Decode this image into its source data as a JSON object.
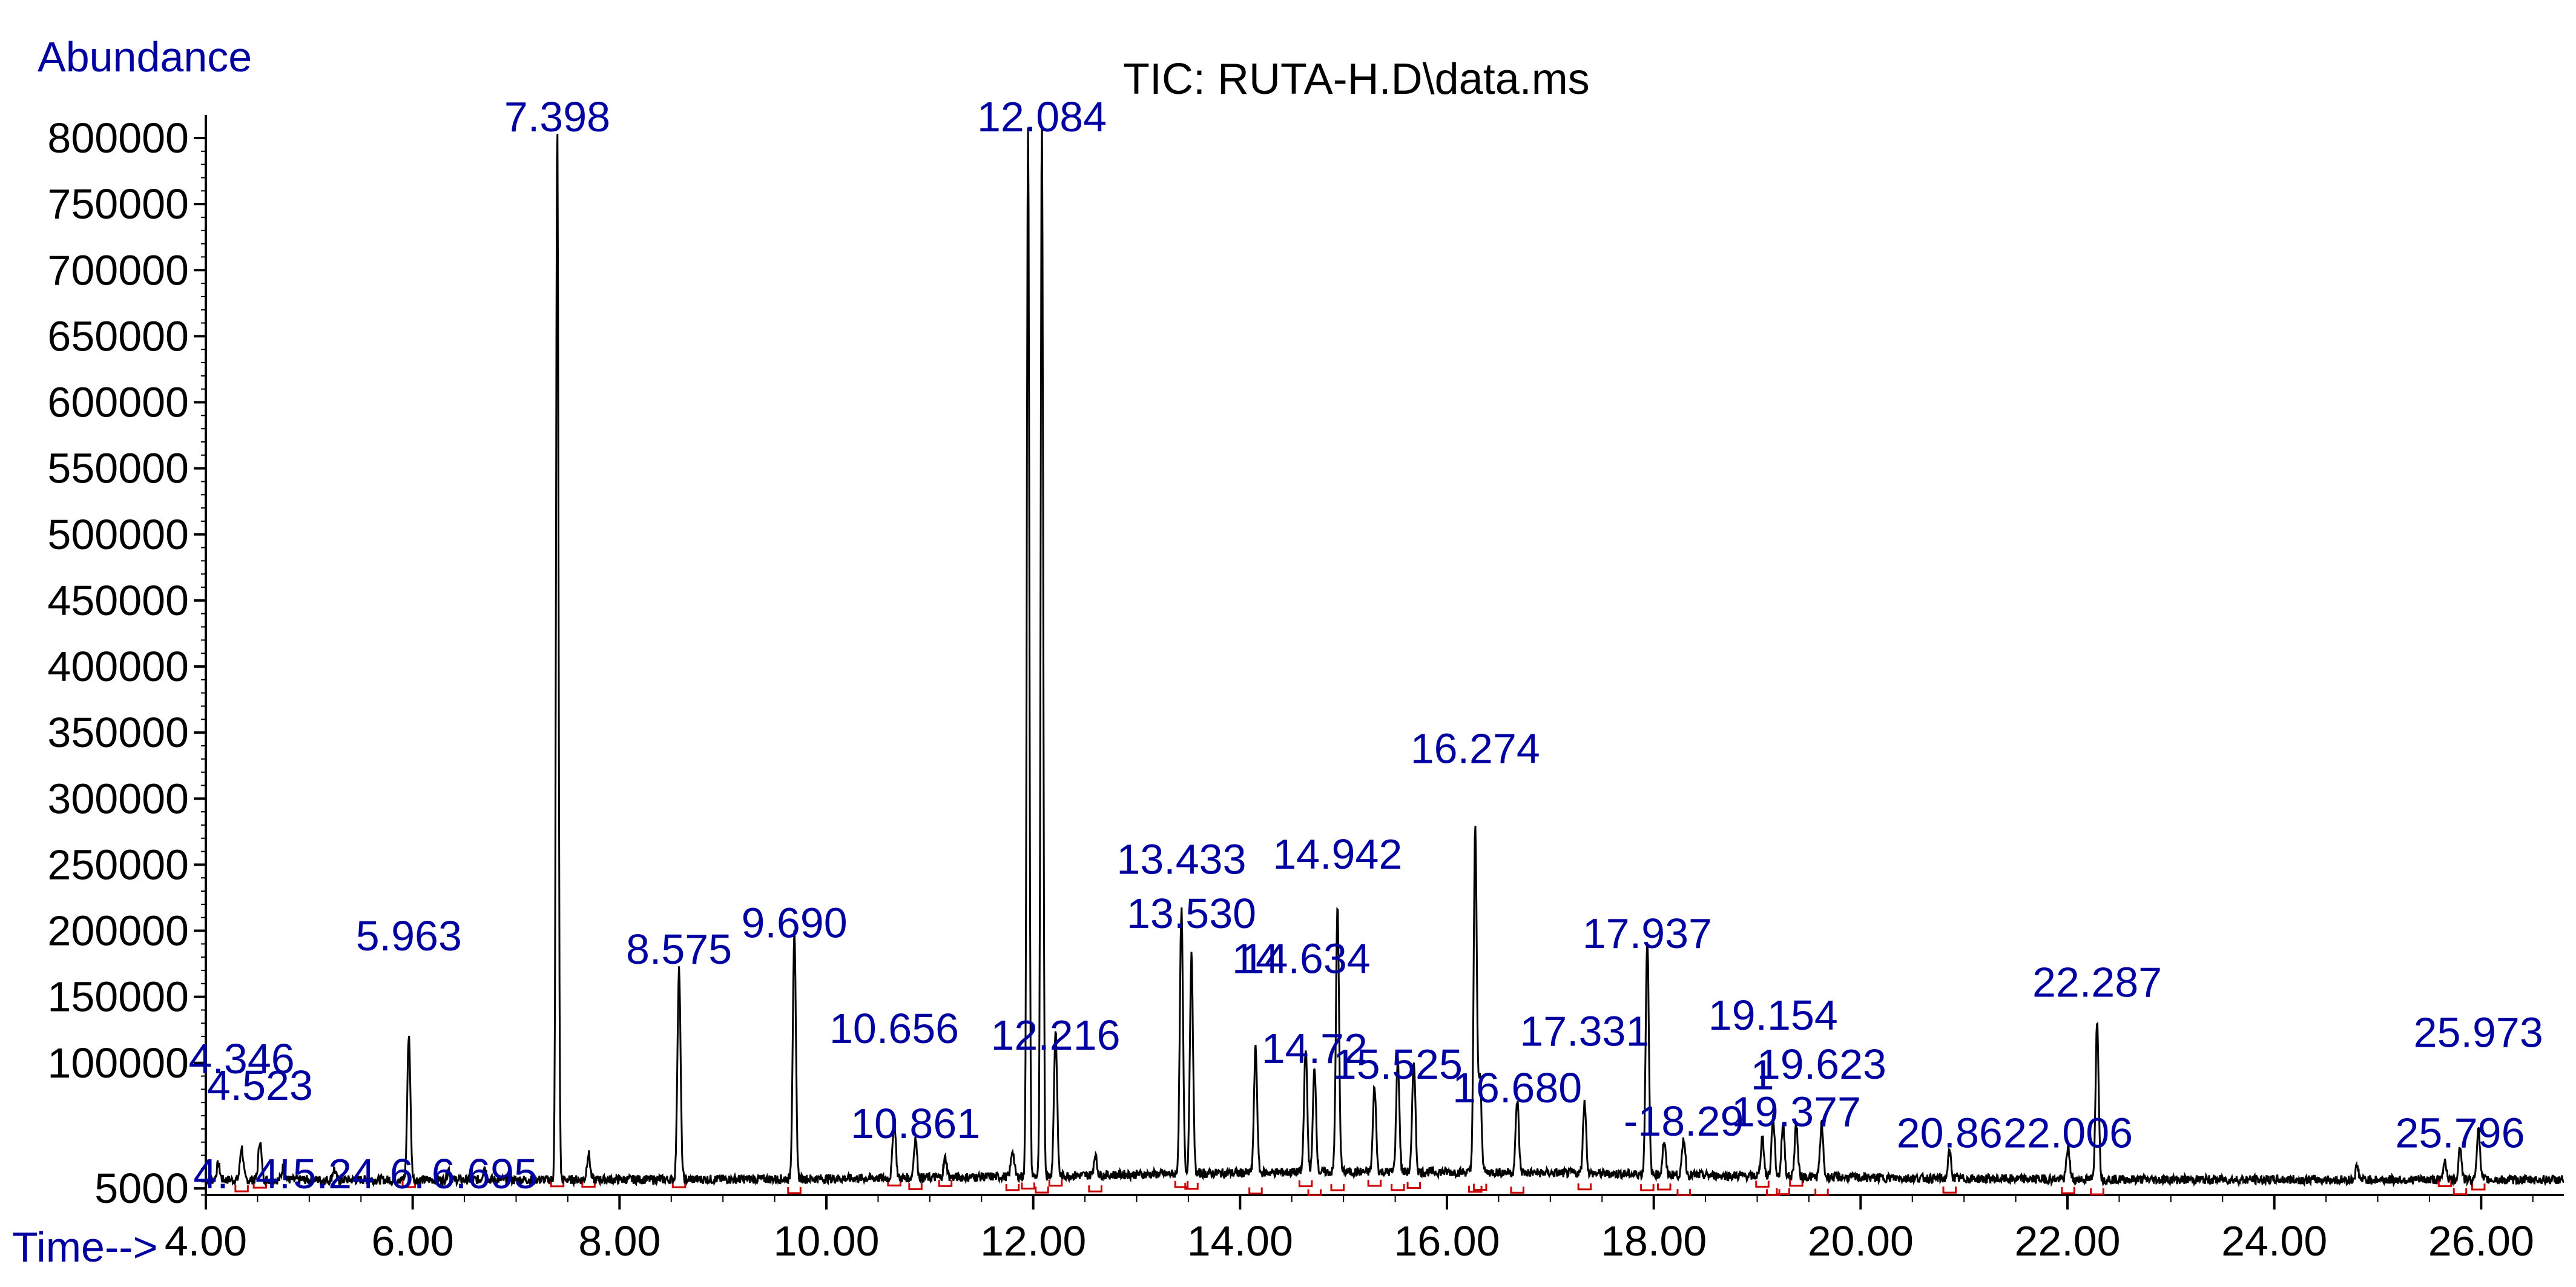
{
  "chart_data": {
    "type": "line",
    "title": "TIC: RUTA-H.D\\data.ms",
    "ylabel": "Abundance",
    "xlabel": "Time-->",
    "xlim": [
      4.0,
      26.8
    ],
    "ylim": [
      0,
      800000
    ],
    "x_ticks": [
      "4.00",
      "6.00",
      "8.00",
      "10.00",
      "12.00",
      "14.00",
      "16.00",
      "18.00",
      "20.00",
      "22.00",
      "24.00",
      "26.00"
    ],
    "y_ticks": [
      "800000",
      "750000",
      "700000",
      "650000",
      "600000",
      "550000",
      "500000",
      "450000",
      "400000",
      "350000",
      "300000",
      "250000",
      "200000",
      "150000",
      "100000",
      "5000"
    ],
    "series": [
      {
        "peaks": [
          {
            "x": 4.12,
            "y": 12000
          },
          {
            "x": 4.346,
            "y": 25000
          },
          {
            "x": 4.523,
            "y": 30000
          },
          {
            "x": 4.75,
            "y": 10000
          },
          {
            "x": 5.24,
            "y": 8000
          },
          {
            "x": 5.963,
            "y": 110000
          },
          {
            "x": 6.35,
            "y": 8000
          },
          {
            "x": 6.695,
            "y": 10000
          },
          {
            "x": 7.398,
            "y": 800000
          },
          {
            "x": 7.7,
            "y": 20000
          },
          {
            "x": 8.575,
            "y": 160000
          },
          {
            "x": 9.69,
            "y": 185000
          },
          {
            "x": 10.656,
            "y": 45000
          },
          {
            "x": 10.861,
            "y": 30000
          },
          {
            "x": 11.15,
            "y": 15000
          },
          {
            "x": 11.8,
            "y": 20000
          },
          {
            "x": 11.95,
            "y": 800000
          },
          {
            "x": 12.084,
            "y": 800000
          },
          {
            "x": 12.216,
            "y": 110000
          },
          {
            "x": 12.6,
            "y": 15000
          },
          {
            "x": 13.433,
            "y": 200000
          },
          {
            "x": 13.53,
            "y": 165000
          },
          {
            "x": 14.15,
            "y": 95000
          },
          {
            "x": 14.634,
            "y": 95000
          },
          {
            "x": 14.72,
            "y": 80000
          },
          {
            "x": 14.942,
            "y": 200000
          },
          {
            "x": 15.3,
            "y": 65000
          },
          {
            "x": 15.525,
            "y": 85000
          },
          {
            "x": 15.68,
            "y": 85000
          },
          {
            "x": 16.274,
            "y": 260000
          },
          {
            "x": 16.32,
            "y": 70000
          },
          {
            "x": 16.68,
            "y": 55000
          },
          {
            "x": 17.331,
            "y": 55000
          },
          {
            "x": 17.937,
            "y": 180000
          },
          {
            "x": 18.1,
            "y": 25000
          },
          {
            "x": 18.29,
            "y": 28000
          },
          {
            "x": 19.05,
            "y": 30000
          },
          {
            "x": 19.154,
            "y": 45000
          },
          {
            "x": 19.25,
            "y": 40000
          },
          {
            "x": 19.377,
            "y": 40000
          },
          {
            "x": 19.623,
            "y": 40000
          },
          {
            "x": 20.86,
            "y": 20000
          },
          {
            "x": 22.006,
            "y": 25000
          },
          {
            "x": 22.287,
            "y": 120000
          },
          {
            "x": 24.8,
            "y": 10000
          },
          {
            "x": 25.65,
            "y": 15000
          },
          {
            "x": 25.796,
            "y": 25000
          },
          {
            "x": 25.973,
            "y": 40000
          }
        ]
      }
    ],
    "peak_labels": [
      {
        "text": "4.346",
        "x": 4.346,
        "y": 92000
      },
      {
        "text": "4.523",
        "x": 4.523,
        "y": 72000
      },
      {
        "text": "4.",
        "x": 4.05,
        "y": 5000
      },
      {
        "text": "4!",
        "x": 4.65,
        "y": 5000
      },
      {
        "text": "5.24",
        "x": 5.24,
        "y": 5000
      },
      {
        "text": "6.",
        "x": 5.95,
        "y": 5000
      },
      {
        "text": "6.695",
        "x": 6.695,
        "y": 5000
      },
      {
        "text": "5.963",
        "x": 5.963,
        "y": 185000
      },
      {
        "text": "7.398",
        "x": 7.398,
        "y": 805000
      },
      {
        "text": "8.575",
        "x": 8.575,
        "y": 175000
      },
      {
        "text": "9.690",
        "x": 9.69,
        "y": 195000
      },
      {
        "text": "10.656",
        "x": 10.656,
        "y": 115000
      },
      {
        "text": "10.861",
        "x": 10.861,
        "y": 43000
      },
      {
        "text": "12.084",
        "x": 12.084,
        "y": 805000
      },
      {
        "text": "12.216",
        "x": 12.216,
        "y": 110000
      },
      {
        "text": "13.433",
        "x": 13.433,
        "y": 243000
      },
      {
        "text": "13.530",
        "x": 13.53,
        "y": 202000
      },
      {
        "text": "14",
        "x": 14.15,
        "y": 168000
      },
      {
        "text": "14.634",
        "x": 14.634,
        "y": 168000
      },
      {
        "text": "14.942",
        "x": 14.942,
        "y": 247000
      },
      {
        "text": "14.72",
        "x": 14.72,
        "y": 100000
      },
      {
        "text": "15.525",
        "x": 15.525,
        "y": 88000
      },
      {
        "text": "16.274",
        "x": 16.274,
        "y": 327000
      },
      {
        "text": "16.680",
        "x": 16.68,
        "y": 70000
      },
      {
        "text": "17.331",
        "x": 17.331,
        "y": 113000
      },
      {
        "text": "17.937",
        "x": 17.937,
        "y": 187000
      },
      {
        "text": "-18.29",
        "x": 18.29,
        "y": 45000
      },
      {
        "text": "1",
        "x": 19.05,
        "y": 80000
      },
      {
        "text": "19.154",
        "x": 19.154,
        "y": 125000
      },
      {
        "text": "19.623",
        "x": 19.623,
        "y": 88000
      },
      {
        "text": "19.377",
        "x": 19.377,
        "y": 52000
      },
      {
        "text": "20.86",
        "x": 20.86,
        "y": 36000
      },
      {
        "text": "22.006",
        "x": 22.006,
        "y": 36000
      },
      {
        "text": "22.287",
        "x": 22.287,
        "y": 150000
      },
      {
        "text": "25.973",
        "x": 25.973,
        "y": 112000
      },
      {
        "text": "25.796",
        "x": 25.796,
        "y": 36000
      }
    ],
    "grid": false,
    "colors": {
      "axis_text": "#0000a0",
      "trace": "#000000",
      "baseline": "#cc0000"
    }
  }
}
